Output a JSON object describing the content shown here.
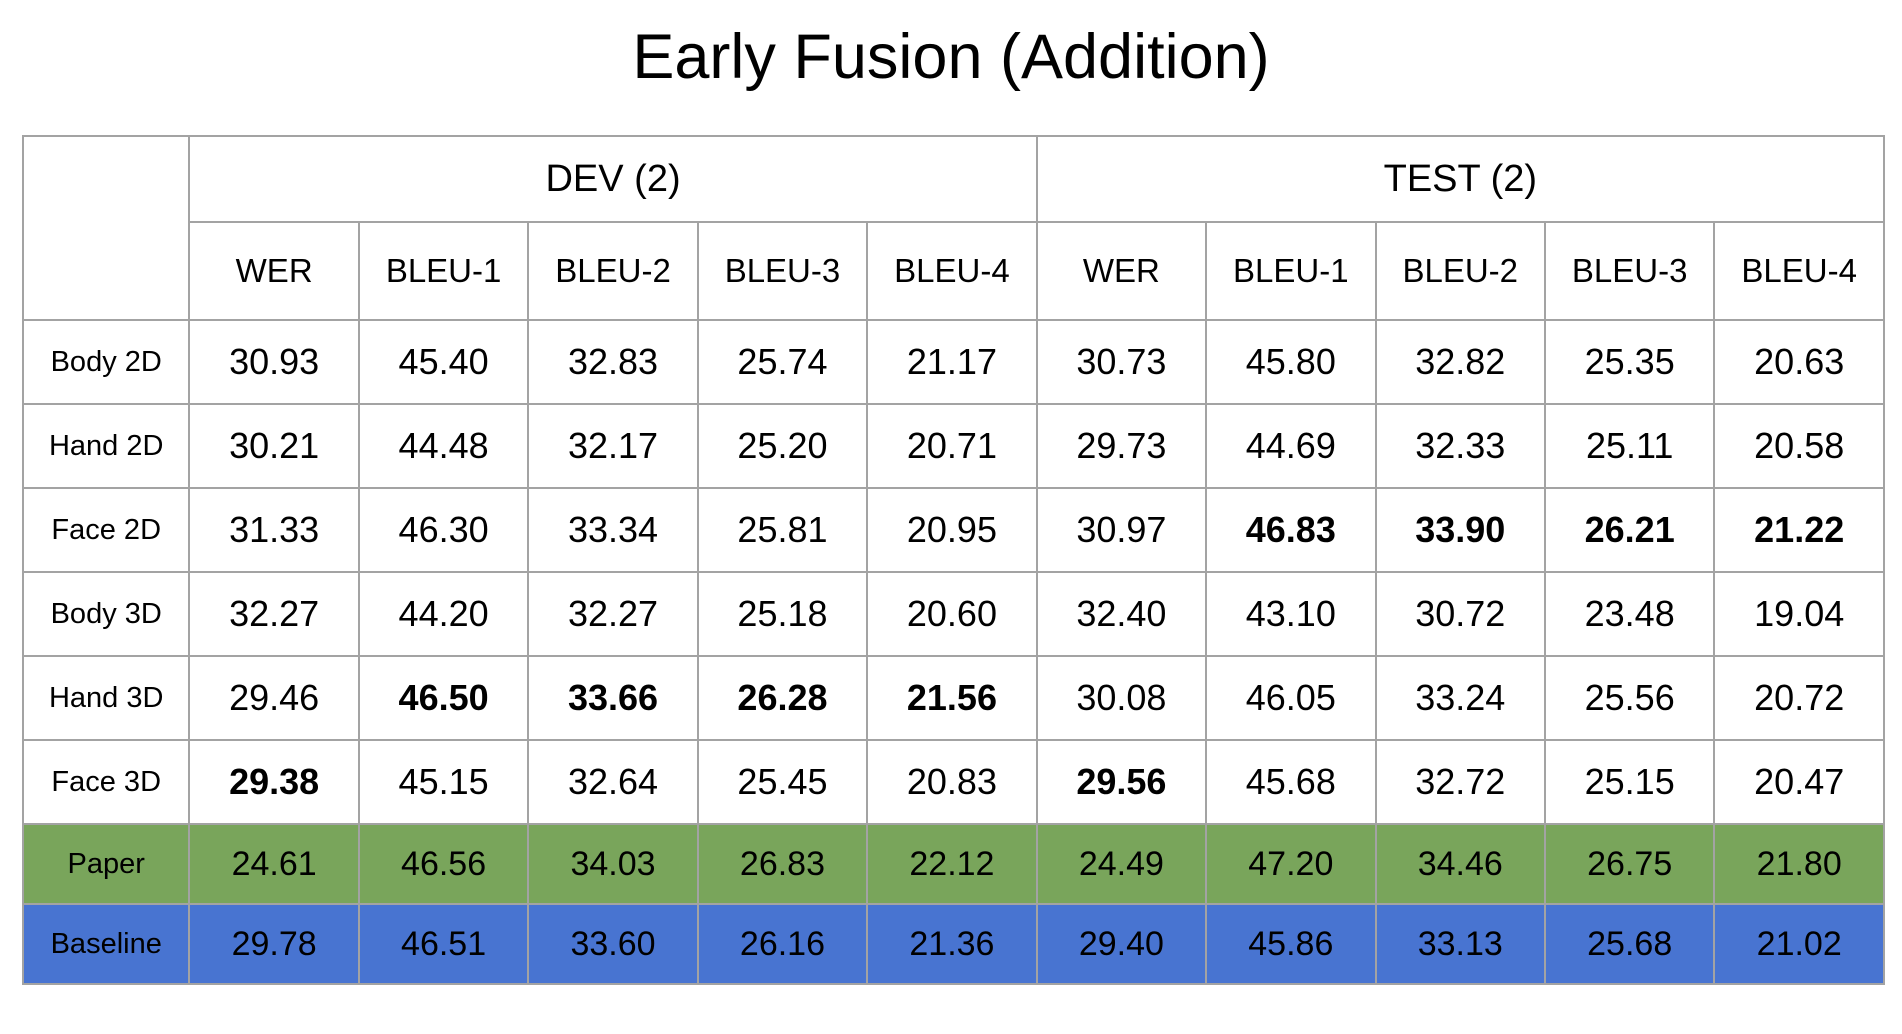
{
  "title": "Early Fusion (Addition)",
  "colors": {
    "paper_row": "#79a55b",
    "baseline_row": "#4874d1",
    "grid": "#a3a3a3"
  },
  "groups": [
    "DEV (2)",
    "TEST (2)"
  ],
  "metrics": [
    "WER",
    "BLEU-1",
    "BLEU-2",
    "BLEU-3",
    "BLEU-4",
    "WER",
    "BLEU-1",
    "BLEU-2",
    "BLEU-3",
    "BLEU-4"
  ],
  "rows": [
    {
      "label": "Body 2D",
      "values": [
        "30.93",
        "45.40",
        "32.83",
        "25.74",
        "21.17",
        "30.73",
        "45.80",
        "32.82",
        "25.35",
        "20.63"
      ],
      "bold": [
        false,
        false,
        false,
        false,
        false,
        false,
        false,
        false,
        false,
        false
      ]
    },
    {
      "label": "Hand 2D",
      "values": [
        "30.21",
        "44.48",
        "32.17",
        "25.20",
        "20.71",
        "29.73",
        "44.69",
        "32.33",
        "25.11",
        "20.58"
      ],
      "bold": [
        false,
        false,
        false,
        false,
        false,
        false,
        false,
        false,
        false,
        false
      ]
    },
    {
      "label": "Face 2D",
      "values": [
        "31.33",
        "46.30",
        "33.34",
        "25.81",
        "20.95",
        "30.97",
        "46.83",
        "33.90",
        "26.21",
        "21.22"
      ],
      "bold": [
        false,
        false,
        false,
        false,
        false,
        false,
        true,
        true,
        true,
        true
      ]
    },
    {
      "label": "Body 3D",
      "values": [
        "32.27",
        "44.20",
        "32.27",
        "25.18",
        "20.60",
        "32.40",
        "43.10",
        "30.72",
        "23.48",
        "19.04"
      ],
      "bold": [
        false,
        false,
        false,
        false,
        false,
        false,
        false,
        false,
        false,
        false
      ]
    },
    {
      "label": "Hand 3D",
      "values": [
        "29.46",
        "46.50",
        "33.66",
        "26.28",
        "21.56",
        "30.08",
        "46.05",
        "33.24",
        "25.56",
        "20.72"
      ],
      "bold": [
        false,
        true,
        true,
        true,
        true,
        false,
        false,
        false,
        false,
        false
      ]
    },
    {
      "label": "Face 3D",
      "values": [
        "29.38",
        "45.15",
        "32.64",
        "25.45",
        "20.83",
        "29.56",
        "45.68",
        "32.72",
        "25.15",
        "20.47"
      ],
      "bold": [
        true,
        false,
        false,
        false,
        false,
        true,
        false,
        false,
        false,
        false
      ]
    }
  ],
  "reference_rows": [
    {
      "label": "Paper",
      "values": [
        "24.61",
        "46.56",
        "34.03",
        "26.83",
        "22.12",
        "24.49",
        "47.20",
        "34.46",
        "26.75",
        "21.80"
      ],
      "color": "#79a55b"
    },
    {
      "label": "Baseline",
      "values": [
        "29.78",
        "46.51",
        "33.60",
        "26.16",
        "21.36",
        "29.40",
        "45.86",
        "33.13",
        "25.68",
        "21.02"
      ],
      "color": "#4874d1"
    }
  ]
}
